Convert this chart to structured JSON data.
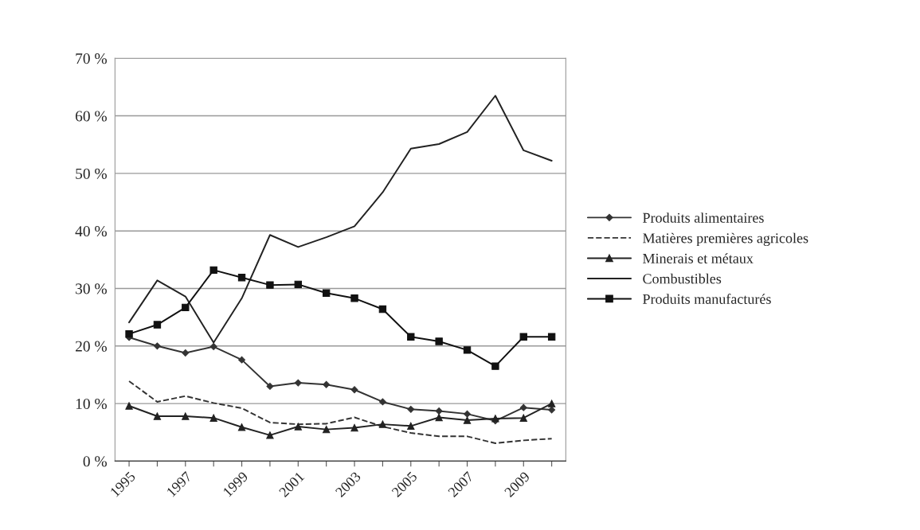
{
  "chart_data": {
    "type": "line",
    "categories": [
      "1995",
      null,
      "1997",
      null,
      "1999",
      null,
      "2001",
      null,
      "2003",
      null,
      "2005",
      null,
      "2007",
      null,
      "2009",
      null
    ],
    "series": [
      {
        "name": "Produits alimentaires",
        "color": "#333333",
        "marker": "diamond",
        "line_style": "solid",
        "values": [
          21.5,
          20,
          18.8,
          19.9,
          17.6,
          13,
          13.6,
          13.3,
          12.4,
          10.3,
          9,
          8.7,
          8.2,
          7,
          9.3,
          8.9
        ]
      },
      {
        "name": "Matières premières agricoles",
        "color": "#333333",
        "marker": "none",
        "line_style": "dashed",
        "values": [
          13.9,
          10.3,
          11.3,
          10.1,
          9.2,
          6.7,
          6.4,
          6.5,
          7.6,
          6,
          4.9,
          4.3,
          4.3,
          3.1,
          3.6,
          3.9
        ]
      },
      {
        "name": "Minerais et métaux",
        "color": "#222222",
        "marker": "triangle",
        "line_style": "solid",
        "values": [
          9.6,
          7.8,
          7.8,
          7.5,
          5.9,
          4.5,
          6,
          5.5,
          5.8,
          6.4,
          6.1,
          7.6,
          7.1,
          7.4,
          7.5,
          10
        ]
      },
      {
        "name": "Combustibles",
        "color": "#222222",
        "marker": "none",
        "line_style": "solid",
        "values": [
          24.1,
          31.4,
          28.6,
          20.6,
          28.3,
          39.3,
          37.2,
          38.9,
          40.8,
          46.7,
          54.3,
          55.1,
          57.2,
          63.5,
          54,
          52.2
        ]
      },
      {
        "name": "Produits manufacturés",
        "color": "#111111",
        "marker": "square",
        "line_style": "solid",
        "values": [
          22.1,
          23.7,
          26.7,
          33.2,
          31.9,
          30.6,
          30.7,
          29.2,
          28.3,
          26.4,
          21.6,
          20.8,
          19.3,
          16.5,
          21.6,
          21.6
        ]
      }
    ],
    "ylim": [
      0,
      70
    ],
    "yticks": [
      {
        "value": 0,
        "label": "0 %"
      },
      {
        "value": 10,
        "label": "10 %"
      },
      {
        "value": 20,
        "label": "20 %"
      },
      {
        "value": 30,
        "label": "30 %"
      },
      {
        "value": 40,
        "label": "40 %"
      },
      {
        "value": 50,
        "label": "50 %"
      },
      {
        "value": 60,
        "label": "60 %"
      },
      {
        "value": 70,
        "label": "70 %"
      }
    ],
    "grid": "y",
    "legend": "right"
  }
}
